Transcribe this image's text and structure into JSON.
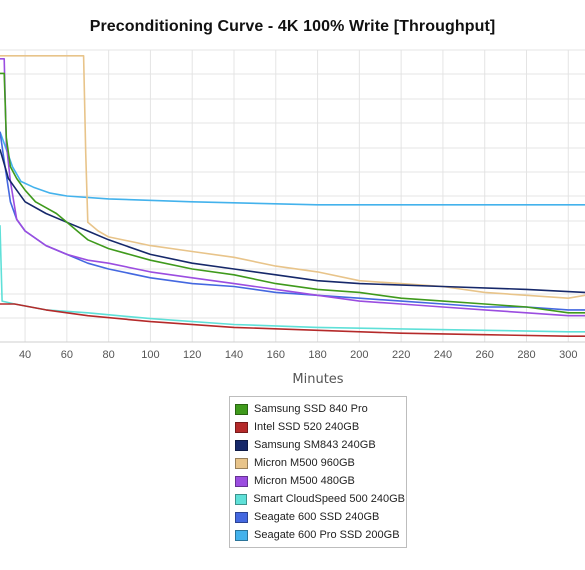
{
  "chart_data": {
    "type": "line",
    "title": "Preconditioning Curve - 4K 100% Write [Throughput]",
    "xlabel": "Minutes",
    "ylabel": "",
    "x_ticks": [
      "40",
      "60",
      "80",
      "100",
      "120",
      "140",
      "160",
      "180",
      "200",
      "220",
      "240",
      "260",
      "280",
      "300"
    ],
    "xlim": [
      28,
      308
    ],
    "ylim": [
      0,
      100
    ],
    "grid": true,
    "legend_position": "bottom",
    "series": [
      {
        "name": "Samsung SSD 840 Pro",
        "color": "#3f9a1c",
        "points": [
          [
            28,
            92
          ],
          [
            30,
            92
          ],
          [
            31,
            70
          ],
          [
            33,
            60
          ],
          [
            36,
            56
          ],
          [
            40,
            52
          ],
          [
            45,
            48
          ],
          [
            50,
            46
          ],
          [
            55,
            44
          ],
          [
            60,
            41
          ],
          [
            65,
            38
          ],
          [
            70,
            35
          ],
          [
            80,
            32
          ],
          [
            100,
            28
          ],
          [
            120,
            25
          ],
          [
            140,
            23
          ],
          [
            160,
            20
          ],
          [
            180,
            18
          ],
          [
            200,
            17
          ],
          [
            220,
            15
          ],
          [
            240,
            14
          ],
          [
            260,
            13
          ],
          [
            280,
            12
          ],
          [
            300,
            10
          ],
          [
            308,
            10
          ]
        ]
      },
      {
        "name": "Intel SSD 520 240GB",
        "color": "#b52a2a",
        "points": [
          [
            28,
            13
          ],
          [
            35,
            13
          ],
          [
            50,
            11
          ],
          [
            70,
            9
          ],
          [
            100,
            7
          ],
          [
            140,
            5
          ],
          [
            180,
            4
          ],
          [
            220,
            3
          ],
          [
            260,
            2.5
          ],
          [
            300,
            2
          ],
          [
            308,
            2
          ]
        ]
      },
      {
        "name": "Samsung SM843 240GB",
        "color": "#16286a",
        "points": [
          [
            28,
            66
          ],
          [
            32,
            56
          ],
          [
            36,
            52
          ],
          [
            40,
            48
          ],
          [
            50,
            44
          ],
          [
            60,
            41
          ],
          [
            70,
            38
          ],
          [
            80,
            35
          ],
          [
            100,
            30
          ],
          [
            120,
            27
          ],
          [
            140,
            25
          ],
          [
            160,
            23
          ],
          [
            180,
            21
          ],
          [
            200,
            20
          ],
          [
            240,
            19
          ],
          [
            280,
            18
          ],
          [
            308,
            17
          ]
        ]
      },
      {
        "name": "Micron M500 960GB",
        "color": "#e8c48a",
        "points": [
          [
            28,
            98
          ],
          [
            68,
            98
          ],
          [
            69,
            65
          ],
          [
            70,
            41
          ],
          [
            75,
            38
          ],
          [
            80,
            36
          ],
          [
            100,
            33
          ],
          [
            120,
            31
          ],
          [
            140,
            29
          ],
          [
            160,
            26
          ],
          [
            180,
            24
          ],
          [
            200,
            21
          ],
          [
            220,
            20
          ],
          [
            240,
            19
          ],
          [
            260,
            17
          ],
          [
            280,
            16
          ],
          [
            300,
            15
          ],
          [
            308,
            16
          ]
        ]
      },
      {
        "name": "Micron M500 480GB",
        "color": "#9b4de0",
        "points": [
          [
            28,
            97
          ],
          [
            30,
            97
          ],
          [
            31,
            68
          ],
          [
            33,
            55
          ],
          [
            36,
            42
          ],
          [
            40,
            38
          ],
          [
            50,
            33
          ],
          [
            60,
            30
          ],
          [
            70,
            28
          ],
          [
            80,
            27
          ],
          [
            100,
            24
          ],
          [
            120,
            22
          ],
          [
            140,
            20
          ],
          [
            160,
            18
          ],
          [
            180,
            16
          ],
          [
            200,
            14
          ],
          [
            220,
            13
          ],
          [
            240,
            12
          ],
          [
            260,
            11
          ],
          [
            280,
            10
          ],
          [
            300,
            9
          ],
          [
            308,
            9
          ]
        ]
      },
      {
        "name": "Smart CloudSpeed 500 240GB",
        "color": "#5fe0d8",
        "points": [
          [
            28,
            40
          ],
          [
            29,
            14
          ],
          [
            35,
            13
          ],
          [
            50,
            11
          ],
          [
            70,
            10
          ],
          [
            100,
            8
          ],
          [
            140,
            6
          ],
          [
            180,
            5
          ],
          [
            220,
            4.5
          ],
          [
            260,
            4
          ],
          [
            300,
            3.5
          ],
          [
            308,
            3.5
          ]
        ]
      },
      {
        "name": "Seagate 600 SSD 240GB",
        "color": "#4468e0",
        "points": [
          [
            28,
            72
          ],
          [
            30,
            62
          ],
          [
            33,
            48
          ],
          [
            36,
            42
          ],
          [
            40,
            38
          ],
          [
            50,
            33
          ],
          [
            60,
            30
          ],
          [
            70,
            27
          ],
          [
            80,
            25
          ],
          [
            100,
            22
          ],
          [
            120,
            20
          ],
          [
            140,
            19
          ],
          [
            160,
            17
          ],
          [
            180,
            16
          ],
          [
            200,
            15
          ],
          [
            220,
            14
          ],
          [
            240,
            13
          ],
          [
            260,
            12
          ],
          [
            280,
            12
          ],
          [
            300,
            11
          ],
          [
            308,
            11
          ]
        ]
      },
      {
        "name": "Seagate 600 Pro SSD 200GB",
        "color": "#43b2ec",
        "points": [
          [
            28,
            72
          ],
          [
            30,
            68
          ],
          [
            34,
            60
          ],
          [
            38,
            55
          ],
          [
            44,
            53
          ],
          [
            52,
            51
          ],
          [
            60,
            50
          ],
          [
            80,
            49
          ],
          [
            120,
            48
          ],
          [
            180,
            47
          ],
          [
            240,
            47
          ],
          [
            308,
            47
          ]
        ]
      }
    ]
  }
}
